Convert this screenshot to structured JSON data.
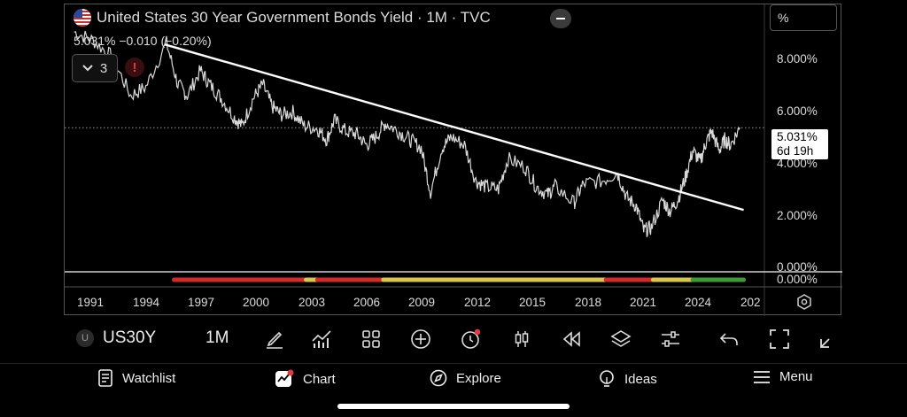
{
  "header": {
    "title": "United States 30 Year Government Bonds Yield · 1M · TVC",
    "quote": "5.031%  −0.010 (−0.20%)",
    "indicators_count": "3",
    "alert_symbol": "!",
    "unit_label": "%"
  },
  "price_axis": {
    "ticks": [
      "8.000%",
      "6.000%",
      "4.000%",
      "2.000%",
      "0.000%"
    ],
    "last_value": "5.031%",
    "countdown": "6d 19h",
    "indicator_zero": "0.000%"
  },
  "time_axis": {
    "ticks": [
      "1991",
      "1994",
      "1997",
      "2000",
      "2003",
      "2006",
      "2009",
      "2012",
      "2015",
      "2018",
      "2021",
      "2024",
      "202"
    ]
  },
  "toolbar": {
    "symbol_initial": "U",
    "symbol": "US30Y",
    "interval": "1M"
  },
  "bottom_nav": {
    "watchlist": "Watchlist",
    "chart": "Chart",
    "explore": "Explore",
    "ideas": "Ideas",
    "menu": "Menu"
  },
  "colors": {
    "background": "#000000",
    "price_line": "#d9d9d9",
    "trend_line": "#ffffff",
    "ind_red": "#d42a2a",
    "ind_yellow": "#d9c64a",
    "ind_green": "#3f9a3a",
    "alert_red": "#e03b43"
  },
  "chart_data": {
    "type": "line",
    "series": [
      {
        "x": [
          1990.0,
          1991.0,
          1992.0,
          1993.0,
          1993.8,
          1994.9,
          1995.5,
          1996.0,
          1996.7,
          1997.2,
          1997.8,
          1998.5,
          1998.9,
          1999.5,
          2000.0,
          2000.5,
          2001.0,
          2001.6,
          2002.2,
          2002.9,
          2003.4,
          2003.8,
          2004.4,
          2005.0,
          2005.5,
          2006.0,
          2006.5,
          2007.2,
          2007.8,
          2008.4,
          2008.9,
          2009.5,
          2010.0,
          2010.7,
          2011.3,
          2011.8,
          2012.5,
          2013.0,
          2013.9,
          2014.5,
          2015.1,
          2015.5,
          2016.5,
          2017.0,
          2018.0,
          2018.8,
          2019.3,
          2019.8,
          2020.2,
          2020.6,
          2021.2,
          2021.6,
          2022.0,
          2022.4,
          2022.8,
          2023.2,
          2023.5,
          2023.8,
          2024.2,
          2024.5,
          2024.8,
          2025.3
        ]
      }
    ],
    "y": [
      8.5,
      8.2,
      7.6,
      6.2,
      6.5,
      8.1,
      6.6,
      6.2,
      7.1,
      6.6,
      6.1,
      5.4,
      5.1,
      6.1,
      6.6,
      5.8,
      5.5,
      5.6,
      5.1,
      5.0,
      4.6,
      5.3,
      4.9,
      4.8,
      4.4,
      4.7,
      5.2,
      4.9,
      4.6,
      4.3,
      2.7,
      4.3,
      4.7,
      4.4,
      3.1,
      2.9,
      2.8,
      3.9,
      3.6,
      2.9,
      2.6,
      2.9,
      2.3,
      3.0,
      3.1,
      3.4,
      2.5,
      2.2,
      1.3,
      1.4,
      2.4,
      2.0,
      2.4,
      3.2,
      4.2,
      3.8,
      4.5,
      4.9,
      4.2,
      4.6,
      4.4,
      5.031
    ],
    "trend_line": {
      "x": [
        1994.8,
        2025.5
      ],
      "y": [
        8.05,
        2.05
      ]
    },
    "ylim": [
      0,
      9.5
    ],
    "xlim": [
      1989.5,
      2026.6
    ],
    "last_value": 5.031,
    "grid": false
  }
}
